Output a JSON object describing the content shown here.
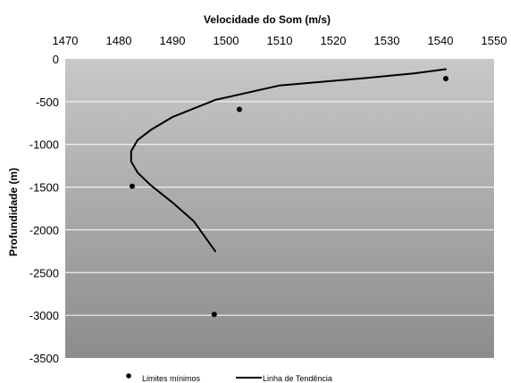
{
  "chart_data": {
    "type": "scatter",
    "title": "",
    "xlabel": "Velocidade do Som (m/s)",
    "ylabel": "Profundidade (m)",
    "xlim": [
      1470,
      1550
    ],
    "ylim": [
      -3500,
      0
    ],
    "xticks": [
      "1470",
      "1480",
      "1490",
      "1500",
      "1510",
      "1520",
      "1530",
      "1540",
      "1550"
    ],
    "yticks": [
      "0",
      "-500",
      "-1000",
      "-1500",
      "-2000",
      "-2500",
      "-3000",
      "-3500"
    ],
    "x_axis_position": "top",
    "grid": true,
    "legend_position": "bottom",
    "series": [
      {
        "name": "Limites mínimos",
        "kind": "points",
        "points": [
          {
            "x": 1541,
            "y": -230
          },
          {
            "x": 1502.5,
            "y": -590
          },
          {
            "x": 1482.5,
            "y": -1490
          },
          {
            "x": 1497.8,
            "y": -2990
          }
        ]
      },
      {
        "name": "Linha de Tendência",
        "kind": "line",
        "points": [
          {
            "x": 1541,
            "y": -120
          },
          {
            "x": 1535,
            "y": -170
          },
          {
            "x": 1525,
            "y": -230
          },
          {
            "x": 1510,
            "y": -310
          },
          {
            "x": 1498,
            "y": -480
          },
          {
            "x": 1490,
            "y": -680
          },
          {
            "x": 1486,
            "y": -830
          },
          {
            "x": 1483.5,
            "y": -950
          },
          {
            "x": 1482.3,
            "y": -1080
          },
          {
            "x": 1482.3,
            "y": -1200
          },
          {
            "x": 1483.5,
            "y": -1330
          },
          {
            "x": 1486,
            "y": -1480
          },
          {
            "x": 1490,
            "y": -1680
          },
          {
            "x": 1494,
            "y": -1900
          },
          {
            "x": 1498,
            "y": -2250
          }
        ]
      }
    ],
    "colors": {
      "plot_top": "#c8c8c8",
      "plot_bottom": "#8c8c8c",
      "grid": "#ffffff",
      "marks": "#000000"
    }
  }
}
